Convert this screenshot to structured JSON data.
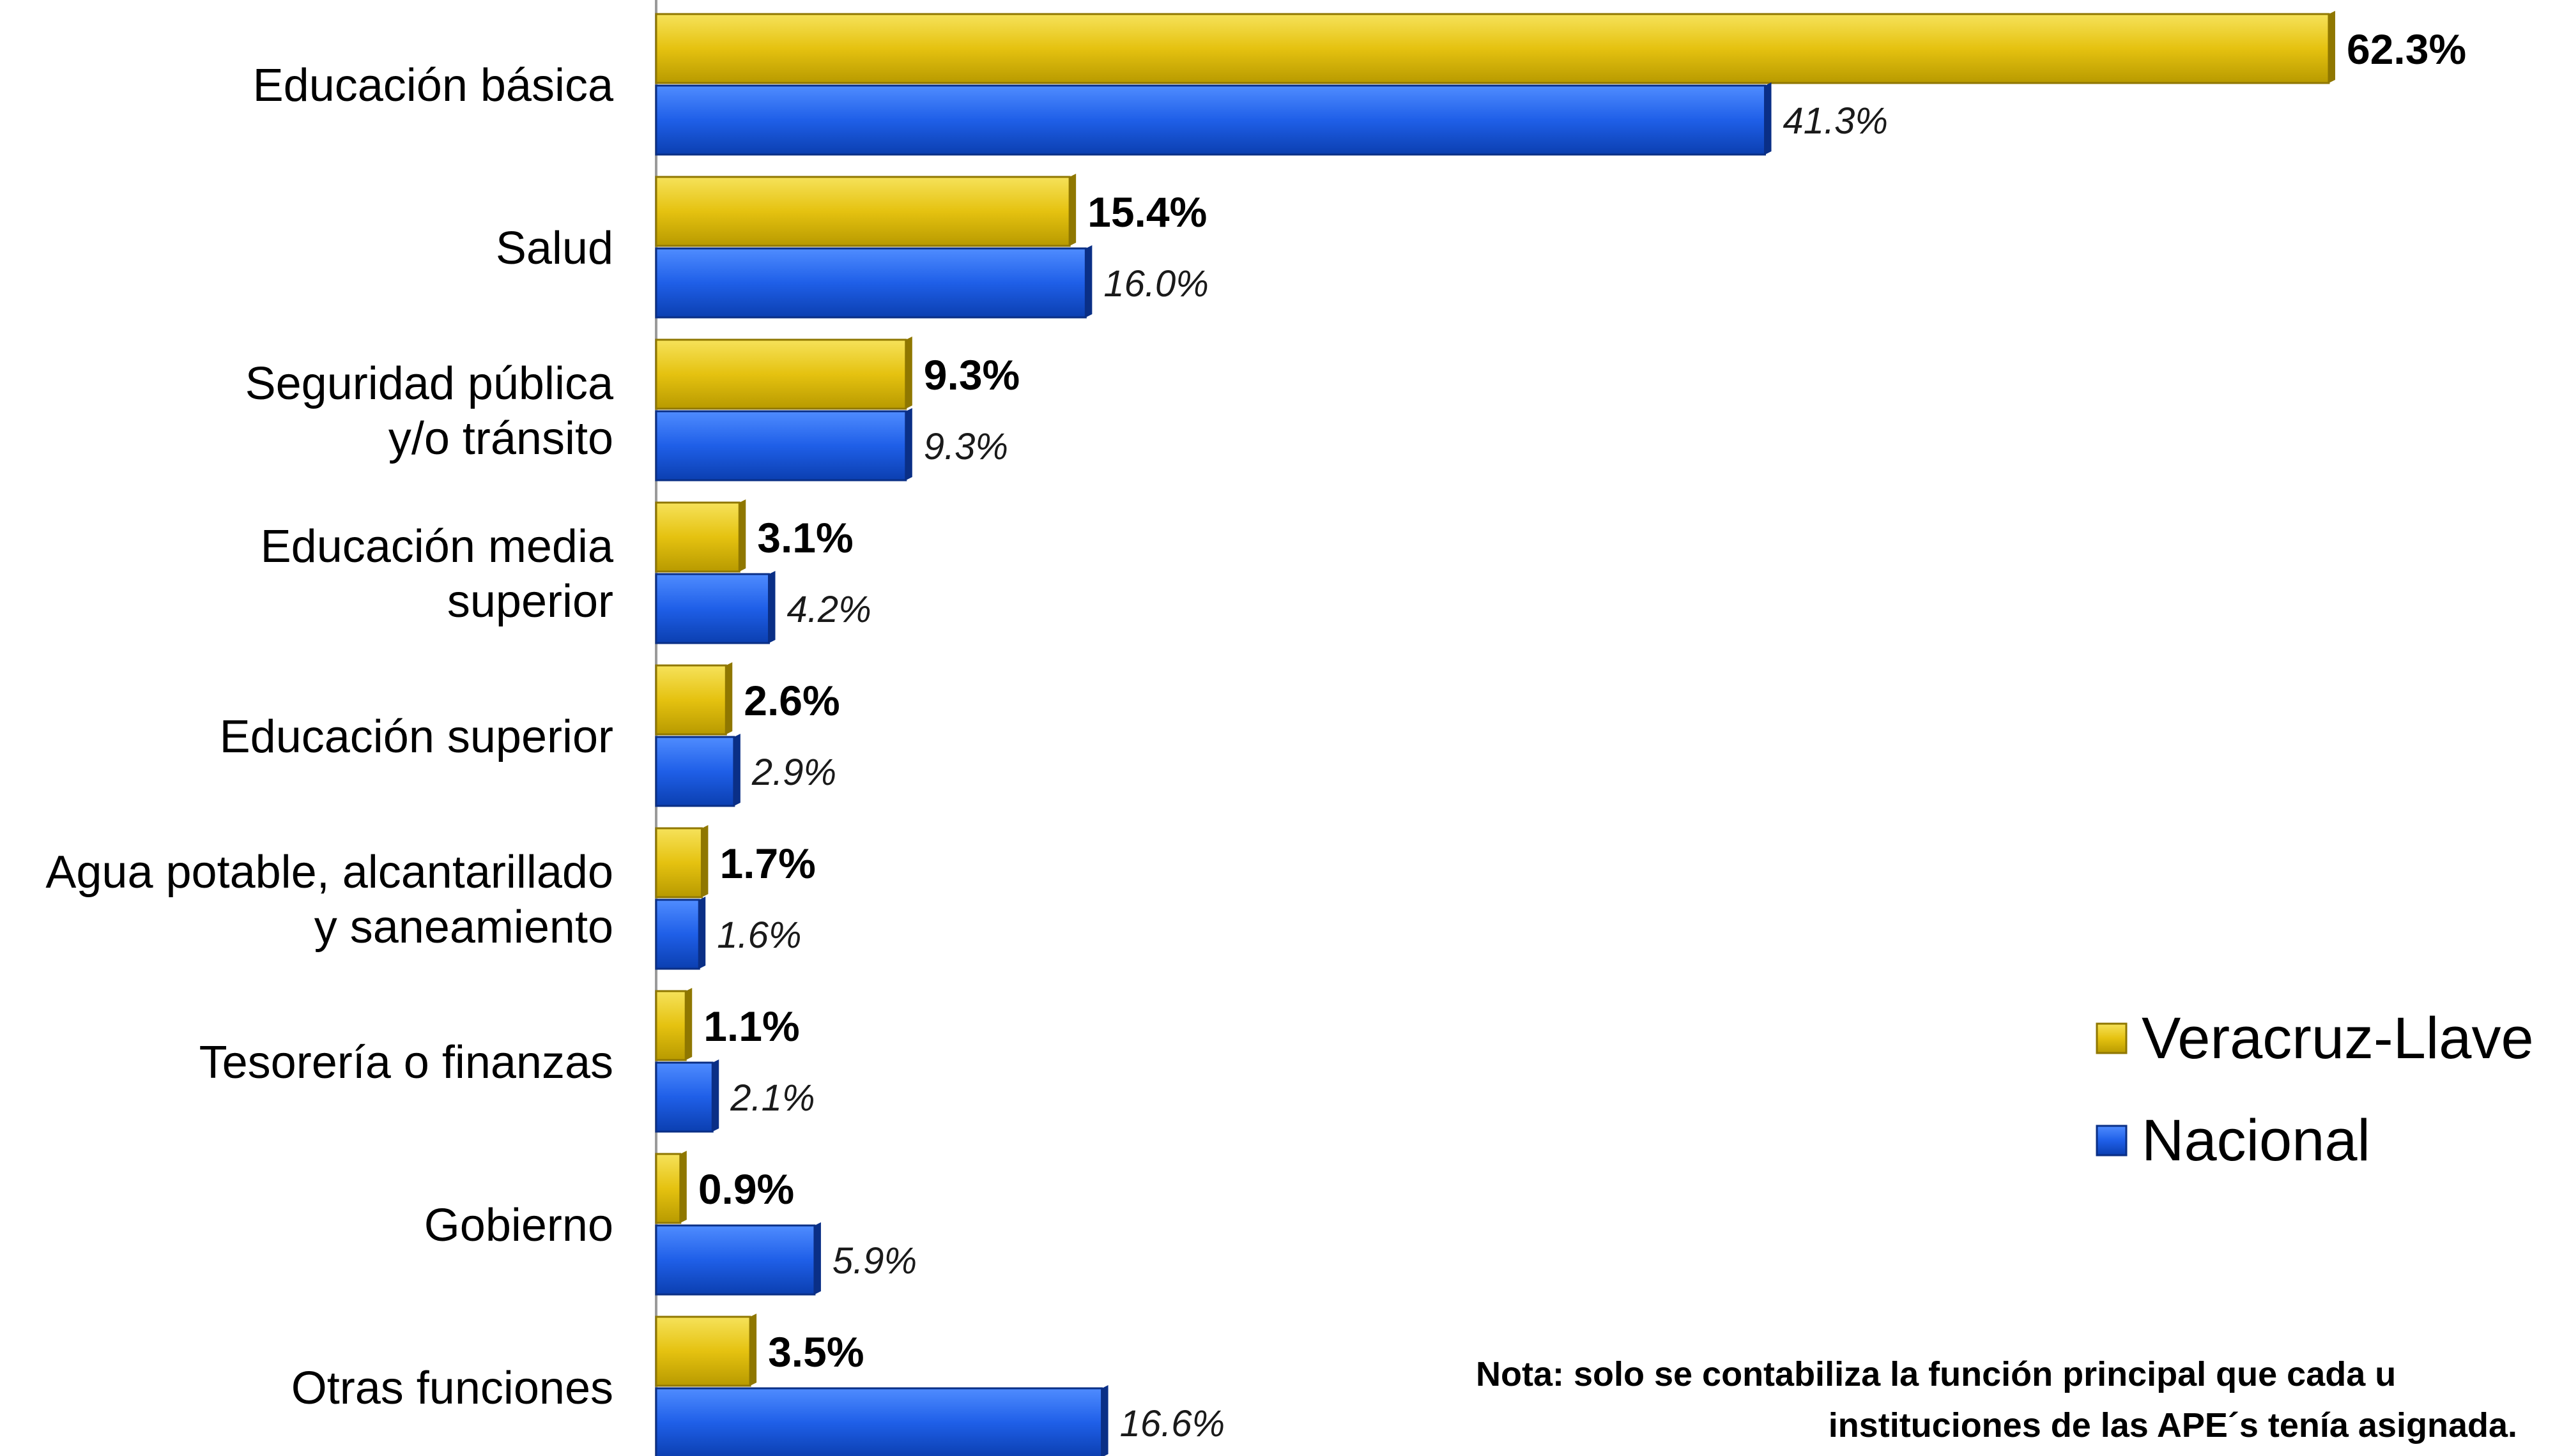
{
  "chart_data": {
    "type": "bar",
    "orientation": "horizontal",
    "categories": [
      "Educación básica",
      "Salud",
      "Seguridad pública y/o tránsito",
      "Educación media superior",
      "Educación superior",
      "Agua potable, alcantarillado y saneamiento",
      "Tesorería o finanzas",
      "Gobierno",
      "Otras funciones"
    ],
    "category_lines": [
      [
        "Educación básica"
      ],
      [
        "Salud"
      ],
      [
        "Seguridad pública",
        "y/o tránsito"
      ],
      [
        "Educación media",
        "superior"
      ],
      [
        "Educación superior"
      ],
      [
        "Agua potable, alcantarillado",
        "y saneamiento"
      ],
      [
        "Tesorería o finanzas"
      ],
      [
        "Gobierno"
      ],
      [
        "Otras funciones"
      ]
    ],
    "series": [
      {
        "name": "Veracruz-Llave",
        "color": "#E8C814",
        "values": [
          62.3,
          15.4,
          9.3,
          3.1,
          2.6,
          1.7,
          1.1,
          0.9,
          3.5
        ],
        "labels": [
          "62.3%",
          "15.4%",
          "9.3%",
          "3.1%",
          "2.6%",
          "1.7%",
          "1.1%",
          "0.9%",
          "3.5%"
        ]
      },
      {
        "name": "Nacional",
        "color": "#1F5FE8",
        "values": [
          41.3,
          16.0,
          9.3,
          4.2,
          2.9,
          1.6,
          2.1,
          5.9,
          16.6
        ],
        "labels": [
          "41.3%",
          "16.0%",
          "9.3%",
          "4.2%",
          "2.9%",
          "1.6%",
          "2.1%",
          "5.9%",
          "16.6%"
        ]
      }
    ],
    "xlim": [
      0,
      62.3
    ],
    "grid": false,
    "legend_position": "right",
    "note": [
      "Nota: solo se contabiliza la función principal que cada u",
      "instituciones de las APE´s tenía asignada."
    ]
  }
}
